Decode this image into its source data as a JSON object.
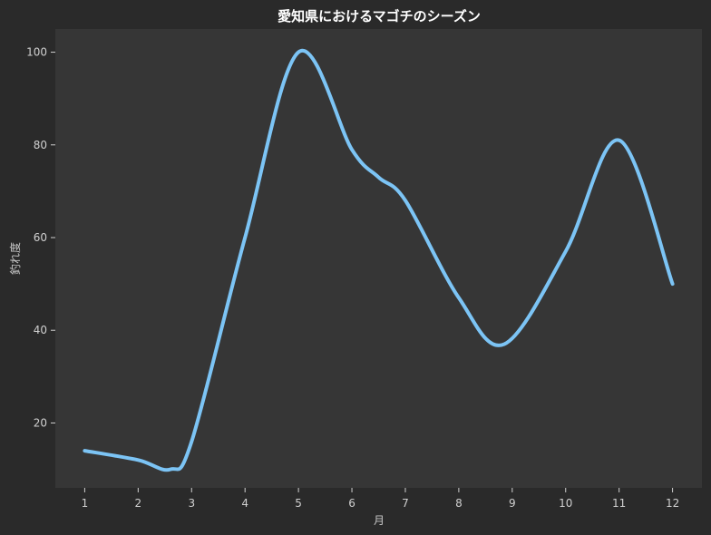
{
  "chart_data": {
    "type": "line",
    "title": "愛知県におけるマゴチのシーズン",
    "xlabel": "月",
    "ylabel": "釣れ度",
    "x": [
      1,
      2,
      2.6,
      3,
      4,
      5,
      6,
      6.5,
      7,
      8,
      8.85,
      10,
      11,
      12
    ],
    "x_ticks": [
      "1",
      "2",
      "3",
      "4",
      "5",
      "6",
      "7",
      "8",
      "9",
      "10",
      "11",
      "12"
    ],
    "y_ticks": [
      "20",
      "40",
      "60",
      "80",
      "100"
    ],
    "xlim": [
      0.45,
      12.55
    ],
    "ylim": [
      6,
      105
    ],
    "grid": false,
    "series": [
      {
        "values": [
          14,
          12,
          10,
          16,
          60,
          100,
          79,
          73,
          68,
          47,
          37,
          57,
          81,
          50
        ],
        "color": "#7cc4f5"
      }
    ],
    "colors": {
      "background": "#2a2a2a",
      "plot_background": "#363636",
      "text": "#ffffff",
      "tick": "#d0d0d0"
    }
  }
}
